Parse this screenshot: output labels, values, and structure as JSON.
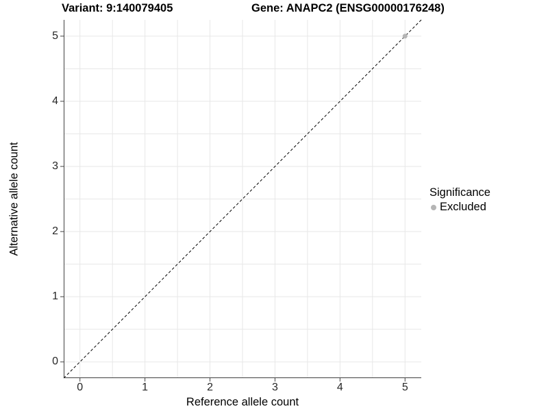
{
  "titles": {
    "variant": "Variant: 9:140079405",
    "gene": "Gene: ANAPC2 (ENSG00000176248)"
  },
  "legend": {
    "title": "Significance",
    "position": "right",
    "items": [
      {
        "label": "Excluded",
        "color": "#b5b5b5"
      }
    ]
  },
  "chart_data": {
    "type": "scatter",
    "title": "Variant: 9:140079405   Gene: ANAPC2 (ENSG00000176248)",
    "xlabel": "Reference allele count",
    "ylabel": "Alternative allele count",
    "xlim": [
      -0.25,
      5.25
    ],
    "ylim": [
      -0.25,
      5.25
    ],
    "x_ticks": [
      0,
      1,
      2,
      3,
      4,
      5
    ],
    "y_ticks": [
      0,
      1,
      2,
      3,
      4,
      5
    ],
    "minor_gridlines": [
      0.5,
      1.5,
      2.5,
      3.5,
      4.5
    ],
    "grid": true,
    "legend_position": "right",
    "series": [
      {
        "name": "Excluded",
        "color": "#b5b5b5",
        "marker": "circle",
        "points": [
          {
            "x": 5,
            "y": 5
          }
        ]
      }
    ],
    "reference_line": {
      "type": "identity",
      "slope": 1,
      "intercept": 0,
      "style": "dashed",
      "color": "#000000"
    },
    "colors": {
      "grid": "#e7e7e7",
      "axis": "#404040",
      "tick_text": "#262626"
    }
  }
}
